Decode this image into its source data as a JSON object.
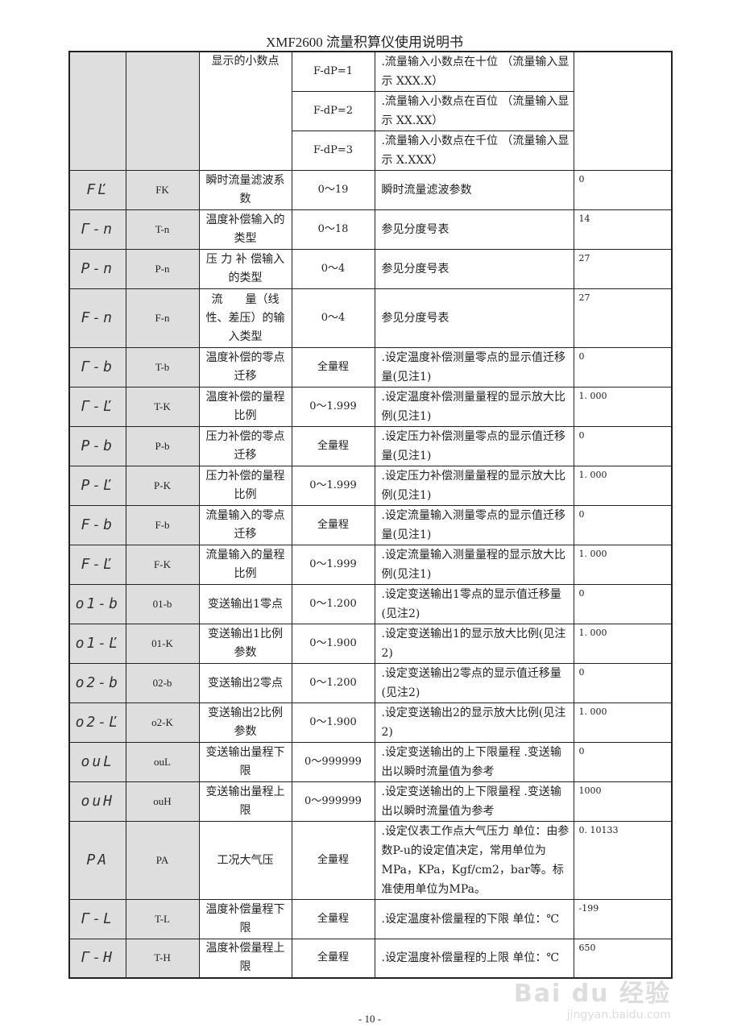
{
  "header": {
    "title": "XMF2600 流量积算仪使用说明书"
  },
  "top_block": {
    "name": "显示的小数点",
    "options": [
      {
        "range": "F-dP=1",
        "desc": ".流量输入小数点在十位 （流量输入显示 XXX.X）"
      },
      {
        "range": "F-dP=2",
        "desc": ".流量输入小数点在百位 （流量输入显示 XX.XX）"
      },
      {
        "range": "F-dP=3",
        "desc": ".流量输入小数点在千位 （流量输入显示 X.XXX）"
      }
    ]
  },
  "rows": [
    {
      "disp": "FĽ",
      "sym": "FK",
      "name": "瞬时流量滤波系数",
      "range": "0～19",
      "desc": "瞬时流量滤波参数",
      "def": "0"
    },
    {
      "disp": "Γ-n",
      "sym": "T-n",
      "name": "温度补偿输入的类型",
      "range": "0～18",
      "desc": "参见分度号表",
      "def": "14"
    },
    {
      "disp": "P-n",
      "sym": "P-n",
      "name": "压 力 补 偿输入的类型",
      "range": "0～4",
      "desc": "参见分度号表",
      "def": "27"
    },
    {
      "disp": "F-n",
      "sym": "F-n",
      "name": "流　　量（线性、差压）的输入类型",
      "range": "0～4",
      "desc": "参见分度号表",
      "def": "27"
    },
    {
      "disp": "Γ-b",
      "sym": "T-b",
      "name": "温度补偿的零点迁移",
      "range": "全量程",
      "desc": ".设定温度补偿测量零点的显示值迁移量(见注1)",
      "def": "0"
    },
    {
      "disp": "Γ-Ľ",
      "sym": "T-K",
      "name": "温度补偿的量程比例",
      "range": "0～1.999",
      "desc": ".设定温度补偿测量量程的显示放大比例(见注1)",
      "def": "1. 000"
    },
    {
      "disp": "P-b",
      "sym": "P-b",
      "name": "压力补偿的零点迁移",
      "range": "全量程",
      "desc": ".设定压力补偿测量零点的显示值迁移量(见注1)",
      "def": "0"
    },
    {
      "disp": "P-Ľ",
      "sym": "P-K",
      "name": "压力补偿的量程比例",
      "range": "0～1.999",
      "desc": ".设定压力补偿测量量程的显示放大比例(见注1)",
      "def": "1. 000"
    },
    {
      "disp": "F-b",
      "sym": "F-b",
      "name": "流量输入的零点迁移",
      "range": "全量程",
      "desc": ".设定流量输入测量零点的显示值迁移量(见注1)",
      "def": "0"
    },
    {
      "disp": "F-Ľ",
      "sym": "F-K",
      "name": "流量输入的量程比例",
      "range": "0～1.999",
      "desc": ".设定流量输入测量量程的显示放大比例(见注1)",
      "def": "1. 000"
    },
    {
      "disp": "o1-b",
      "sym": "01-b",
      "name": "变送输出1零点",
      "range": "0～1.200",
      "desc": ".设定变送输出1零点的显示值迁移量(见注2)",
      "def": "0"
    },
    {
      "disp": "o1-Ľ",
      "sym": "01-K",
      "name": "变送输出1比例参数",
      "range": "0～1.900",
      "desc": ".设定变送输出1的显示放大比例(见注2)",
      "def": "1. 000"
    },
    {
      "disp": "o2-b",
      "sym": "02-b",
      "name": "变送输出2零点",
      "range": "0～1.200",
      "desc": ".设定变送输出2零点的显示值迁移量(见注2)",
      "def": "0"
    },
    {
      "disp": "o2-Ľ",
      "sym": "o2-K",
      "name": "变送输出2比例参数",
      "range": "0～1.900",
      "desc": ".设定变送输出2的显示放大比例(见注2)",
      "def": "1. 000"
    },
    {
      "disp": "ouL",
      "sym": "ouL",
      "name": "变送输出量程下限",
      "range": "0～999999",
      "desc": ".设定变送输出的上下限量程 .变送输出以瞬时流量值为参考",
      "def": "0"
    },
    {
      "disp": "ouH",
      "sym": "ouH",
      "name": "变送输出量程上限",
      "range": "0～999999",
      "desc": ".设定变送输出的上下限量程 .变送输出以瞬时流量值为参考",
      "def": "1000"
    },
    {
      "disp": "PA",
      "sym": "PA",
      "name": "工况大气压",
      "range": "全量程",
      "desc": ".设定仪表工作点大气压力 单位：由参数P-u的设定值决定，常用单位为MPa，KPa，Kgf/cm2，bar等。标准使用单位为MPa。",
      "def": "0. 10133"
    },
    {
      "disp": "Γ-L",
      "sym": "T-L",
      "name": "温度补偿量程下限",
      "range": "全量程",
      "desc": ".设定温度补偿量程的下限 单位：℃",
      "def": "-199"
    },
    {
      "disp": "Γ-H",
      "sym": "T-H",
      "name": "温度补偿量程上限",
      "range": "全量程",
      "desc": ".设定温度补偿量程的上限 单位：℃",
      "def": "650"
    }
  ],
  "watermark": {
    "logo": "Bai du 经验",
    "url": "jingyan.baidu.com"
  },
  "footer": {
    "page": "- 10 -"
  }
}
